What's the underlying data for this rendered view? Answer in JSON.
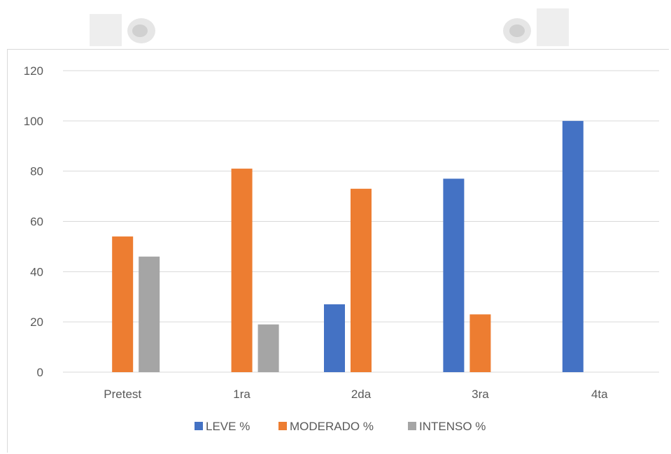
{
  "colors": {
    "leve": "#4472c4",
    "moderado": "#ed7d31",
    "intenso": "#a5a5a5",
    "grid": "#d9d9d9",
    "text": "#595959"
  },
  "chart_data": {
    "type": "bar",
    "title": "",
    "xlabel": "",
    "ylabel": "",
    "ylim": [
      0,
      120
    ],
    "yticks": [
      "0",
      "20",
      "40",
      "60",
      "80",
      "100",
      "120"
    ],
    "categories": [
      "Pretest",
      "1ra",
      "2da",
      "3ra",
      "4ta"
    ],
    "series": [
      {
        "name": "LEVE %",
        "values": [
          0,
          0,
          27,
          77,
          100
        ]
      },
      {
        "name": "MODERADO %",
        "values": [
          54,
          81,
          73,
          23,
          0
        ]
      },
      {
        "name": "INTENSO %",
        "values": [
          46,
          19,
          0,
          0,
          0
        ]
      }
    ],
    "grid": true,
    "legend": "bottom"
  }
}
